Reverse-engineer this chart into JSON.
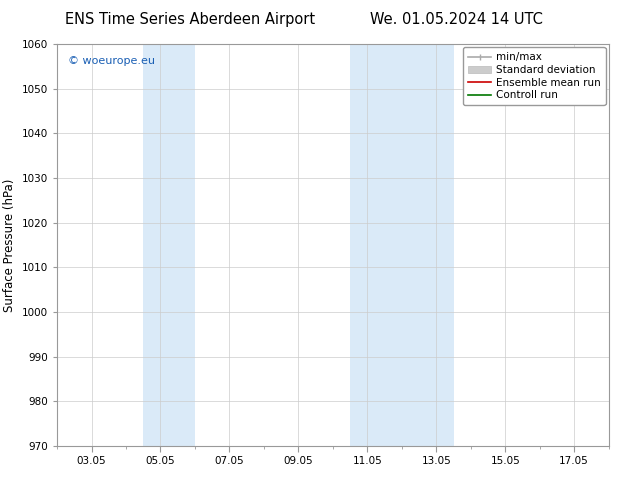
{
  "title_left": "ENS Time Series Aberdeen Airport",
  "title_right": "We. 01.05.2024 14 UTC",
  "ylabel": "Surface Pressure (hPa)",
  "ylim": [
    970,
    1060
  ],
  "yticks": [
    970,
    980,
    990,
    1000,
    1010,
    1020,
    1030,
    1040,
    1050,
    1060
  ],
  "xtick_labels": [
    "03.05",
    "05.05",
    "07.05",
    "09.05",
    "11.05",
    "13.05",
    "15.05",
    "17.05"
  ],
  "xtick_positions": [
    3,
    5,
    7,
    9,
    11,
    13,
    15,
    17
  ],
  "xlim": [
    2,
    18
  ],
  "shaded_regions": [
    {
      "xmin": 4.5,
      "xmax": 6.0,
      "color": "#daeaf8"
    },
    {
      "xmin": 10.5,
      "xmax": 13.5,
      "color": "#daeaf8"
    }
  ],
  "watermark_text": "© woeurope.eu",
  "watermark_color": "#1a5fb4",
  "background_color": "#ffffff",
  "legend_items": [
    {
      "label": "min/max",
      "color": "#aaaaaa",
      "linewidth": 1.2
    },
    {
      "label": "Standard deviation",
      "color": "#cccccc",
      "linewidth": 6
    },
    {
      "label": "Ensemble mean run",
      "color": "#cc0000",
      "linewidth": 1.2
    },
    {
      "label": "Controll run",
      "color": "#007700",
      "linewidth": 1.2
    }
  ],
  "grid_color": "#cccccc",
  "grid_linewidth": 0.5,
  "title_fontsize": 10.5,
  "tick_fontsize": 7.5,
  "ylabel_fontsize": 8.5,
  "watermark_fontsize": 8,
  "legend_fontsize": 7.5
}
